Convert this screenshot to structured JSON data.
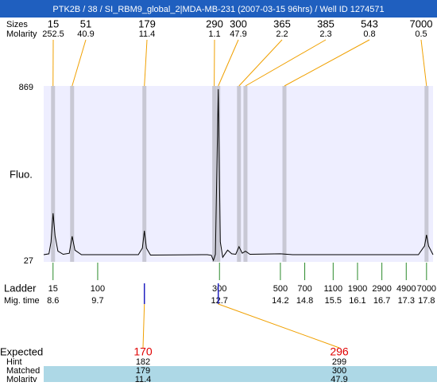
{
  "chart_data": {
    "type": "electropherogram",
    "title": "PTK2B / 38 / SI_RBM9_global_2|MDA-MB-231 (2007-03-15 96hrs) / Well ID 1274571",
    "y_label": "Fluo.",
    "ylim": [
      27,
      869
    ],
    "yticks": [
      869,
      27
    ],
    "xlim": [
      8.37,
      17.96
    ],
    "trace": {
      "x": [
        8.37,
        8.5,
        8.55,
        8.6,
        8.65,
        8.72,
        8.85,
        9.0,
        9.07,
        9.14,
        9.3,
        10.7,
        10.8,
        10.85,
        10.9,
        11.0,
        12.4,
        12.5,
        12.55,
        12.6,
        12.67,
        12.72,
        12.78,
        12.9,
        13.0,
        13.1,
        13.18,
        13.26,
        13.34,
        13.45,
        14.2,
        14.5,
        17.6,
        17.75,
        17.8,
        17.85,
        17.96
      ],
      "y": [
        58,
        62,
        120,
        259,
        150,
        75,
        60,
        65,
        147,
        80,
        58,
        58,
        90,
        174,
        90,
        56,
        58,
        55,
        30,
        60,
        861,
        120,
        45,
        80,
        62,
        60,
        97,
        65,
        75,
        60,
        62,
        58,
        58,
        100,
        154,
        100,
        58
      ]
    },
    "peaks_label": "Sizes",
    "molarity_label": "Molarity",
    "peaks": [
      {
        "size": 15,
        "molarity": 252.5,
        "time": 8.6
      },
      {
        "size": 51,
        "molarity": 40.9,
        "time": 9.07
      },
      {
        "size": 179,
        "molarity": 11.4,
        "time": 10.85
      },
      {
        "size": 290,
        "molarity": 1.1,
        "time": 12.57
      },
      {
        "size": 300,
        "molarity": 47.9,
        "time": 12.67
      },
      {
        "size": 365,
        "molarity": 2.2,
        "time": 13.18
      },
      {
        "size": 385,
        "molarity": 2.3,
        "time": 13.34
      },
      {
        "size": 543,
        "molarity": 0.8,
        "time": 14.3
      },
      {
        "size": 7000,
        "molarity": 0.5,
        "time": 17.8
      }
    ],
    "ladder_label": "Ladder",
    "mig_time_label": "Mig. time",
    "ladder": [
      {
        "size": 15,
        "time": 8.6
      },
      {
        "size": 100,
        "time": 9.7
      },
      {
        "size": 300,
        "time": 12.7
      },
      {
        "size": 500,
        "time": 14.2
      },
      {
        "size": 700,
        "time": 14.8
      },
      {
        "size": 1100,
        "time": 15.5
      },
      {
        "size": 1900,
        "time": 16.1
      },
      {
        "size": 2900,
        "time": 16.7
      },
      {
        "size": 4900,
        "time": 17.3
      },
      {
        "size": 7000,
        "time": 17.8
      }
    ],
    "expected_label": "Expected",
    "hint_label": "Hint",
    "matched_label": "Matched",
    "expected_molarity_label": "Molarity",
    "expected": [
      {
        "expected": 170,
        "hint": 182,
        "matched": 179,
        "molarity": 11.4
      },
      {
        "expected": 296,
        "hint": 299,
        "matched": 300,
        "molarity": 47.9
      }
    ]
  }
}
